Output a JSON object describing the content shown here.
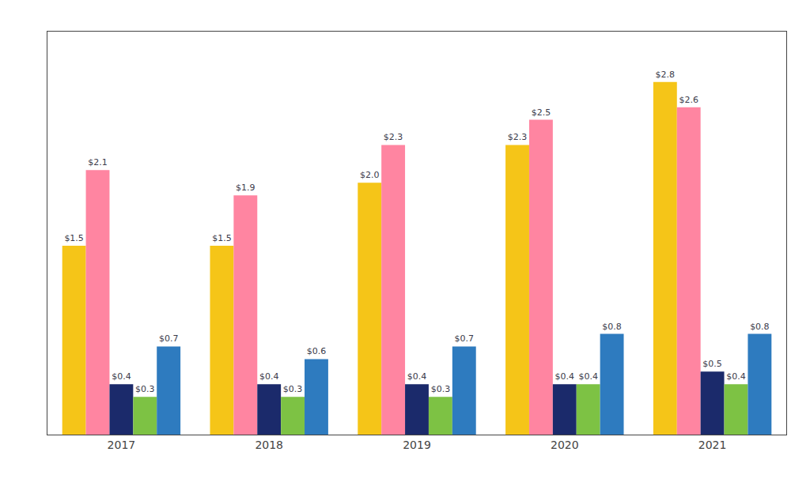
{
  "chart_data": {
    "type": "bar",
    "categories": [
      "2017",
      "2018",
      "2019",
      "2020",
      "2021"
    ],
    "series": [
      {
        "color": "#F5C518",
        "values": [
          1.5,
          1.5,
          2.0,
          2.3,
          2.8
        ],
        "value_labels": [
          "$1.5",
          "$1.5",
          "$2.0",
          "$2.3",
          "$2.8"
        ]
      },
      {
        "color": "#FF85A1",
        "values": [
          2.1,
          1.9,
          2.3,
          2.5,
          2.6
        ],
        "value_labels": [
          "$2.1",
          "$1.9",
          "$2.3",
          "$2.5",
          "$2.6"
        ]
      },
      {
        "color": "#1B2A6B",
        "values": [
          0.4,
          0.4,
          0.4,
          0.4,
          0.5
        ],
        "value_labels": [
          "$0.4",
          "$0.4",
          "$0.4",
          "$0.4",
          "$0.5"
        ]
      },
      {
        "color": "#7DC244",
        "values": [
          0.3,
          0.3,
          0.3,
          0.4,
          0.4
        ],
        "value_labels": [
          "$0.3",
          "$0.3",
          "$0.3",
          "$0.4",
          "$0.4"
        ]
      },
      {
        "color": "#2E7BBF",
        "values": [
          0.7,
          0.6,
          0.7,
          0.8,
          0.8
        ],
        "value_labels": [
          "$0.7",
          "$0.6",
          "$0.7",
          "$0.8",
          "$0.8"
        ]
      }
    ],
    "ylim": [
      0,
      3.2
    ],
    "grid": false,
    "data_labels": true,
    "tick_labels": "x"
  }
}
